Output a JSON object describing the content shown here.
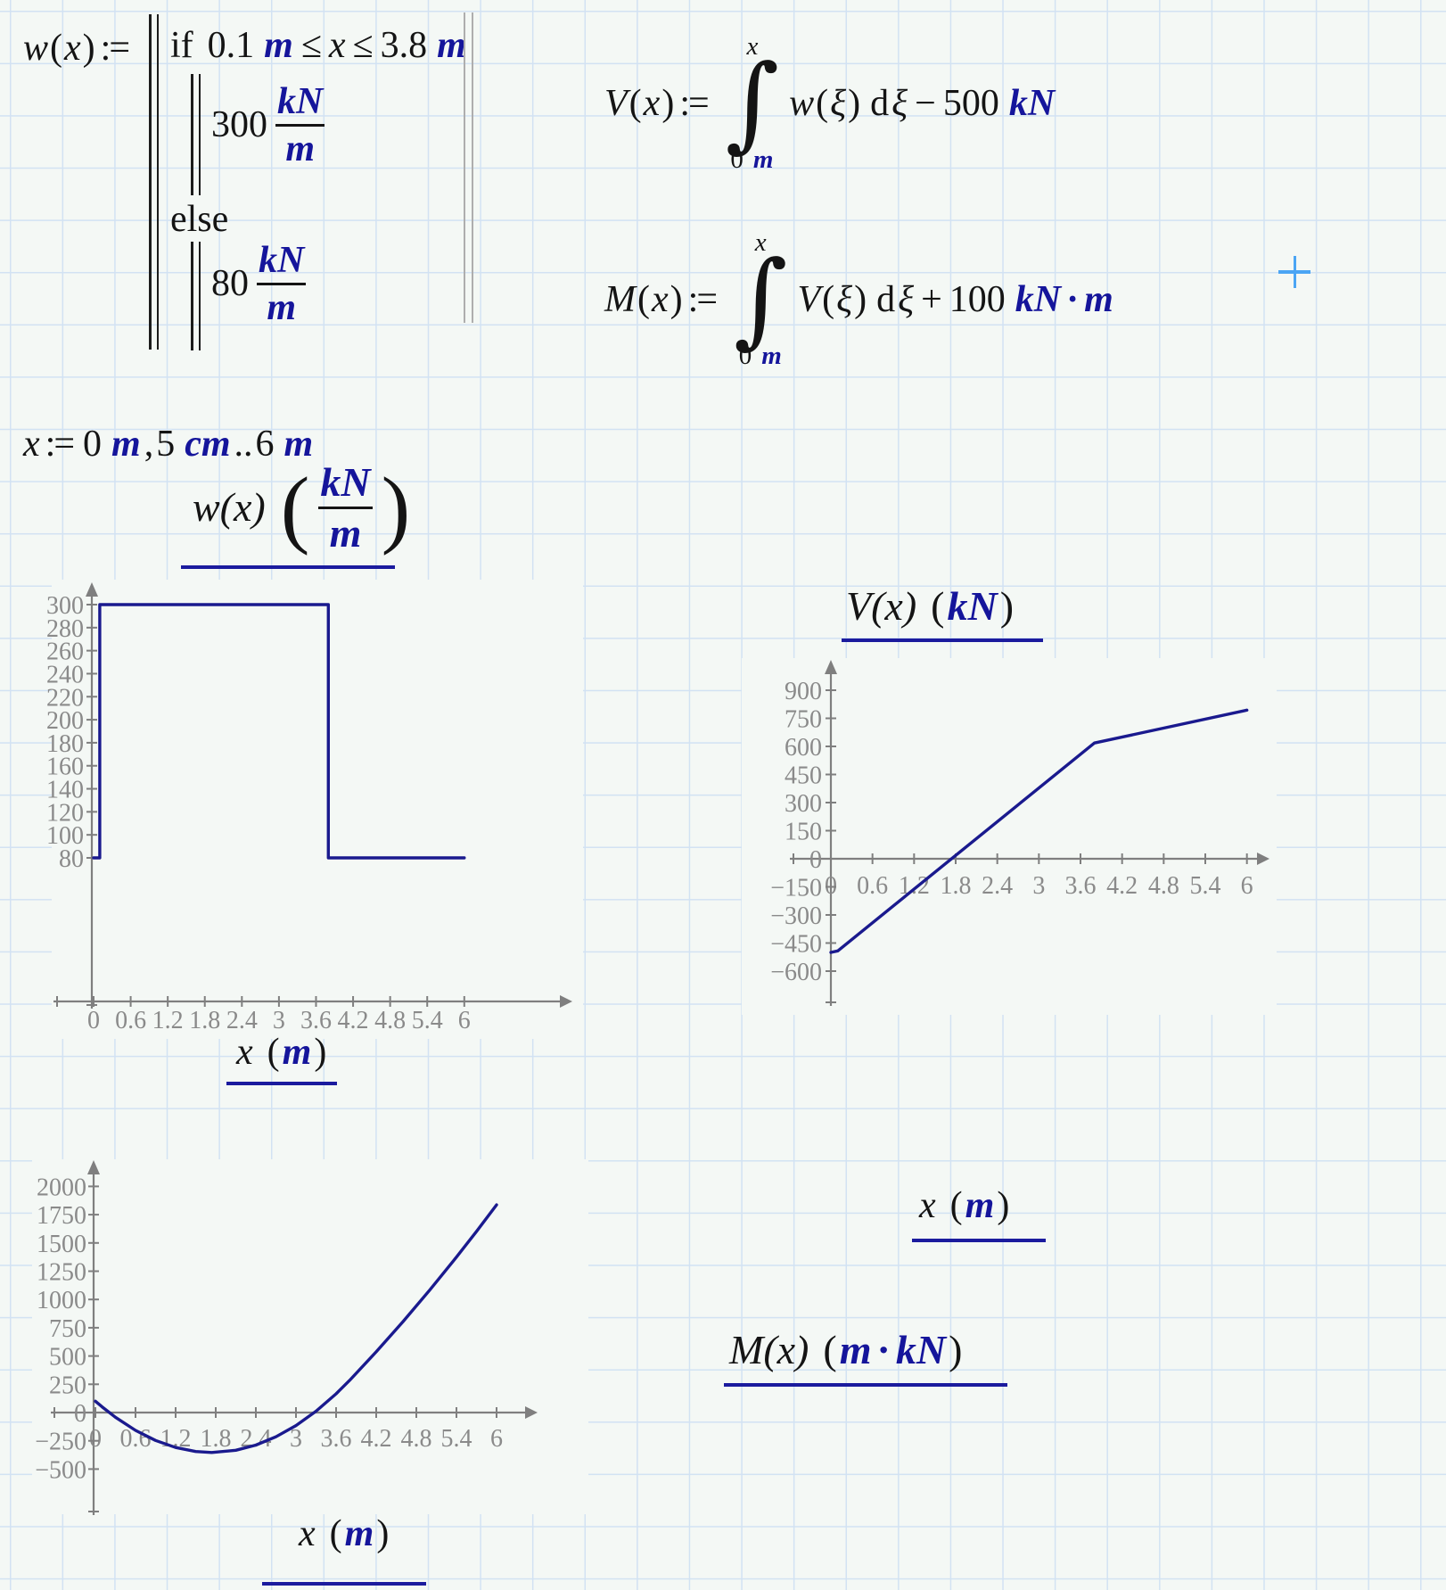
{
  "app": {
    "background": "#f4f8f5",
    "grid_color": "#d2e2f3",
    "accent_navy": "#15159b",
    "curve_color": "#1a1a8e",
    "axis_color": "#7f7f7f",
    "label_color": "#8a8a8a",
    "cursor_color": "#4ba5f4"
  },
  "formulas": {
    "w": {
      "lhs": [
        {
          "t": "w",
          "k": "var"
        },
        {
          "t": "(",
          "k": "pl"
        },
        {
          "t": "x",
          "k": "var"
        },
        {
          "t": ")",
          "k": "pl"
        },
        {
          "t": ":=",
          "k": "def"
        }
      ],
      "cond": [
        {
          "t": "if",
          "k": "kw"
        },
        {
          "k": "sp"
        },
        {
          "t": "0.1",
          "k": "num"
        },
        {
          "k": "sp2"
        },
        {
          "t": "m",
          "k": "unit"
        },
        {
          "t": "≤",
          "k": "op"
        },
        {
          "t": "x",
          "k": "var"
        },
        {
          "t": "≤",
          "k": "op"
        },
        {
          "t": "3.8",
          "k": "num"
        },
        {
          "k": "sp2"
        },
        {
          "t": "m",
          "k": "unit"
        }
      ],
      "branch1": [
        {
          "t": "300",
          "k": "num"
        },
        {
          "k": "frac",
          "num": [
            {
              "t": "kN",
              "k": "unit"
            }
          ],
          "den": [
            {
              "t": "m",
              "k": "unit"
            }
          ]
        }
      ],
      "else_kw": [
        {
          "t": "else",
          "k": "kw"
        }
      ],
      "branch2": [
        {
          "t": "80",
          "k": "num"
        },
        {
          "k": "frac",
          "num": [
            {
              "t": "kN",
              "k": "unit"
            }
          ],
          "den": [
            {
              "t": "m",
              "k": "unit"
            }
          ]
        }
      ]
    },
    "V": {
      "tokens": [
        {
          "t": "V",
          "k": "var"
        },
        {
          "t": "(",
          "k": "pl"
        },
        {
          "t": "x",
          "k": "var"
        },
        {
          "t": ")",
          "k": "pl"
        },
        {
          "t": ":=",
          "k": "def"
        },
        {
          "k": "int",
          "top": [
            {
              "t": "x",
              "k": "var"
            }
          ],
          "bot": [
            {
              "t": "0",
              "k": "num"
            },
            {
              "k": "sp2"
            },
            {
              "t": "m",
              "k": "unit"
            }
          ]
        },
        {
          "t": "w",
          "k": "var"
        },
        {
          "t": "(",
          "k": "pl"
        },
        {
          "t": "ξ",
          "k": "var"
        },
        {
          "t": ")",
          "k": "pl"
        },
        {
          "k": "sp2"
        },
        {
          "t": "d",
          "k": "rm"
        },
        {
          "t": "ξ",
          "k": "var"
        },
        {
          "t": "−",
          "k": "op"
        },
        {
          "t": "500",
          "k": "num"
        },
        {
          "k": "sp2"
        },
        {
          "t": "kN",
          "k": "unit"
        }
      ]
    },
    "M": {
      "tokens": [
        {
          "t": "M",
          "k": "var"
        },
        {
          "t": "(",
          "k": "pl"
        },
        {
          "t": "x",
          "k": "var"
        },
        {
          "t": ")",
          "k": "pl"
        },
        {
          "t": ":=",
          "k": "def"
        },
        {
          "k": "int",
          "top": [
            {
              "t": "x",
              "k": "var"
            }
          ],
          "bot": [
            {
              "t": "0",
              "k": "num"
            },
            {
              "k": "sp2"
            },
            {
              "t": "m",
              "k": "unit"
            }
          ]
        },
        {
          "t": "V",
          "k": "var"
        },
        {
          "t": "(",
          "k": "pl"
        },
        {
          "t": "ξ",
          "k": "var"
        },
        {
          "t": ")",
          "k": "pl"
        },
        {
          "k": "sp2"
        },
        {
          "t": "d",
          "k": "rm"
        },
        {
          "t": "ξ",
          "k": "var"
        },
        {
          "t": "+",
          "k": "op"
        },
        {
          "t": "100",
          "k": "num"
        },
        {
          "k": "sp2"
        },
        {
          "t": "kN",
          "k": "unit"
        },
        {
          "t": "·",
          "k": "cdot"
        },
        {
          "t": "m",
          "k": "unit"
        }
      ]
    },
    "range": {
      "tokens": [
        {
          "t": "x",
          "k": "var"
        },
        {
          "t": ":=",
          "k": "def"
        },
        {
          "t": "0",
          "k": "num"
        },
        {
          "k": "sp2"
        },
        {
          "t": "m",
          "k": "unit"
        },
        {
          "t": ",",
          "k": "rm"
        },
        {
          "t": "5",
          "k": "num"
        },
        {
          "k": "sp2"
        },
        {
          "t": "cm",
          "k": "unit"
        },
        {
          "t": "..",
          "k": "rm"
        },
        {
          "t": "6",
          "k": "num"
        },
        {
          "k": "sp2"
        },
        {
          "t": "m",
          "k": "unit"
        }
      ]
    }
  },
  "titles": {
    "w": [
      {
        "t": "w(x)",
        "k": "var"
      },
      {
        "k": "sp"
      },
      {
        "t": "(",
        "k": "bigp"
      },
      {
        "k": "frac",
        "num": [
          {
            "t": "kN",
            "k": "unit"
          }
        ],
        "den": [
          {
            "t": "m",
            "k": "unit"
          }
        ]
      },
      {
        "t": ")",
        "k": "bigp"
      }
    ],
    "V": [
      {
        "t": "V(x)",
        "k": "var"
      },
      {
        "k": "sp"
      },
      {
        "t": "(",
        "k": "pl"
      },
      {
        "t": "kN",
        "k": "unit"
      },
      {
        "t": ")",
        "k": "pl"
      }
    ],
    "M": [
      {
        "t": "M(x)",
        "k": "var"
      },
      {
        "k": "sp"
      },
      {
        "t": "(",
        "k": "pl"
      },
      {
        "t": "m",
        "k": "unit"
      },
      {
        "t": "·",
        "k": "cdot"
      },
      {
        "t": "kN",
        "k": "unit"
      },
      {
        "t": ")",
        "k": "pl"
      }
    ],
    "xm": [
      {
        "t": "x",
        "k": "var"
      },
      {
        "k": "sp"
      },
      {
        "t": "(",
        "k": "pl"
      },
      {
        "t": "m",
        "k": "unit"
      },
      {
        "t": ")",
        "k": "pl"
      }
    ]
  },
  "chart_data": [
    {
      "type": "line",
      "title": "w(x) (kN/m)",
      "xlabel": "x (m)",
      "ylabel": "",
      "xlim": [
        0,
        6
      ],
      "ylim": [
        80,
        300
      ],
      "grid": false,
      "legend_position": "none",
      "x_tick_values": [
        0,
        0.6,
        1.2,
        1.8,
        2.4,
        3,
        3.6,
        4.2,
        4.8,
        5.4,
        6
      ],
      "x_tick_labels": [
        "0",
        "0.6",
        "1.2",
        "1.8",
        "2.4",
        "3",
        "3.6",
        "4.2",
        "4.8",
        "5.4",
        "6"
      ],
      "y_tick_values": [
        300,
        280,
        260,
        240,
        220,
        200,
        180,
        160,
        140,
        120,
        100,
        80
      ],
      "y_tick_labels": [
        "300",
        "280",
        "260",
        "240",
        "220",
        "200",
        "180",
        "160",
        "140",
        "120",
        "100",
        "80"
      ],
      "series": [
        {
          "name": "w(x)",
          "points": [
            [
              0,
              80
            ],
            [
              0.1,
              80
            ],
            [
              0.1,
              300
            ],
            [
              3.8,
              300
            ],
            [
              3.8,
              80
            ],
            [
              6,
              80
            ]
          ]
        }
      ]
    },
    {
      "type": "line",
      "title": "V(x) (kN)",
      "xlabel": "x (m)",
      "ylabel": "",
      "xlim": [
        0,
        6
      ],
      "ylim": [
        -600,
        900
      ],
      "grid": false,
      "legend_position": "none",
      "x_tick_values": [
        0,
        0.6,
        1.2,
        1.8,
        2.4,
        3,
        3.6,
        4.2,
        4.8,
        5.4,
        6
      ],
      "x_tick_labels": [
        "0",
        "0.6",
        "1.2",
        "1.8",
        "2.4",
        "3",
        "3.6",
        "4.2",
        "4.8",
        "5.4",
        "6"
      ],
      "y_tick_values": [
        900,
        750,
        600,
        450,
        300,
        150,
        0,
        -150,
        -300,
        -450,
        -600
      ],
      "y_tick_labels": [
        "900",
        "750",
        "600",
        "450",
        "300",
        "150",
        "0",
        "−150",
        "−300",
        "−450",
        "−600"
      ],
      "series": [
        {
          "name": "V(x)",
          "points": [
            [
              0,
              -500
            ],
            [
              0.1,
              -492
            ],
            [
              3.8,
              618
            ],
            [
              6,
              794
            ]
          ]
        }
      ]
    },
    {
      "type": "line",
      "title": "M(x) (m·kN)",
      "xlabel": "x (m)",
      "ylabel": "",
      "xlim": [
        0,
        6
      ],
      "ylim": [
        -500,
        2000
      ],
      "grid": false,
      "legend_position": "none",
      "x_tick_values": [
        0,
        0.6,
        1.2,
        1.8,
        2.4,
        3,
        3.6,
        4.2,
        4.8,
        5.4,
        6
      ],
      "x_tick_labels": [
        "0",
        "0.6",
        "1.2",
        "1.8",
        "2.4",
        "3",
        "3.6",
        "4.2",
        "4.8",
        "5.4",
        "6"
      ],
      "y_tick_values": [
        2000,
        1750,
        1500,
        1250,
        1000,
        750,
        500,
        250,
        0,
        -250,
        -500
      ],
      "y_tick_labels": [
        "2000",
        "1750",
        "1500",
        "1250",
        "1000",
        "750",
        "500",
        "250",
        "0",
        "−250",
        "−500"
      ],
      "series": [
        {
          "name": "M(x)",
          "points": [
            [
              0,
              100
            ],
            [
              0.1,
              50.4
            ],
            [
              0.3,
              -42
            ],
            [
              0.6,
              -158.1
            ],
            [
              0.9,
              -247.2
            ],
            [
              1.2,
              -309.3
            ],
            [
              1.5,
              -344.4
            ],
            [
              1.74,
              -353
            ],
            [
              2.1,
              -333.6
            ],
            [
              2.4,
              -287.7
            ],
            [
              2.7,
              -214.8
            ],
            [
              3,
              -114.9
            ],
            [
              3.3,
              12
            ],
            [
              3.6,
              165.9
            ],
            [
              3.8,
              283.5
            ],
            [
              4.2,
              537.1
            ],
            [
              4.6,
              803.5
            ],
            [
              5,
              1082.7
            ],
            [
              5.4,
              1374.7
            ],
            [
              5.7,
              1602.1
            ],
            [
              6,
              1836.7
            ]
          ]
        }
      ]
    }
  ]
}
